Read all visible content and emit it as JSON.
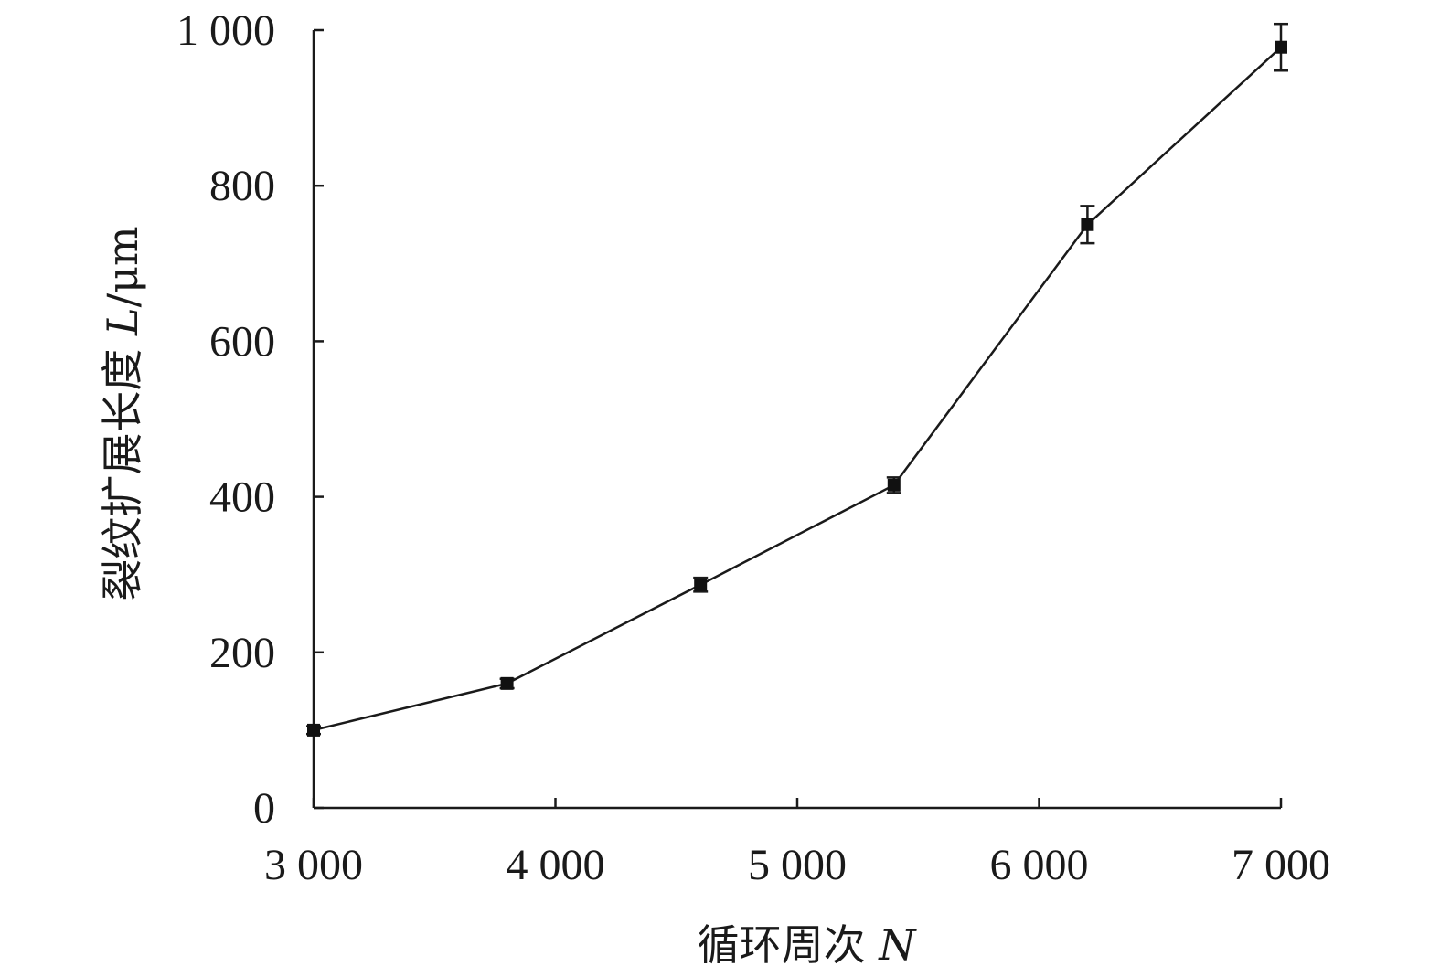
{
  "chart_data": {
    "type": "line",
    "x_tick_labels": [
      "3 000",
      "4 000",
      "5 000",
      "6 000",
      "7 000"
    ],
    "y_tick_labels": [
      "0",
      "200",
      "400",
      "600",
      "800",
      "1 000"
    ],
    "x_ticks": [
      3000,
      4000,
      5000,
      6000,
      7000
    ],
    "y_ticks": [
      0,
      200,
      400,
      600,
      800,
      1000
    ],
    "xlim": [
      3000,
      7000
    ],
    "ylim": [
      0,
      1000
    ],
    "xlabel": {
      "text": "循环周次 ",
      "var": "N"
    },
    "ylabel": {
      "text": "裂纹扩展长度 ",
      "var": "L",
      "unit": "/μm"
    },
    "grid": false,
    "legend": "none",
    "series": [
      {
        "x": [
          3000,
          3800,
          4600,
          5400,
          6200,
          7000
        ],
        "y": [
          100,
          160,
          287,
          415,
          750,
          978
        ],
        "error": [
          5,
          6,
          9,
          10,
          24,
          30
        ]
      }
    ]
  }
}
